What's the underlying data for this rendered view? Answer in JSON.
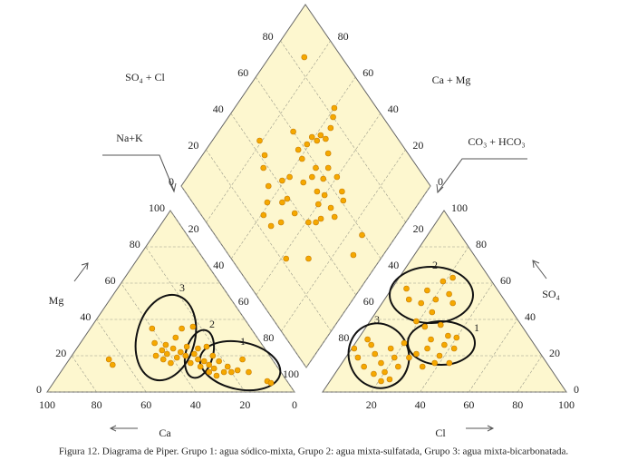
{
  "chart_data": {
    "type": "piper",
    "caption": "Figura 12. Diagrama de Piper. Grupo 1: agua sódico-mixta, Grupo 2: agua mixta-sulfatada, Grupo 3: agua mixta-bicarbonatada.",
    "color": "#f5a800",
    "background": "#fdf7cf",
    "groups": [
      "1",
      "2",
      "3"
    ],
    "cation_triangle": {
      "x_label": "Ca",
      "y_label": "Mg",
      "xticks": [
        100,
        80,
        60,
        40,
        20,
        0
      ],
      "yticks": [
        0,
        20,
        40,
        60,
        80,
        100
      ],
      "points": {
        "Ca": [
          66,
          66,
          40,
          43,
          46,
          42,
          44,
          39,
          41,
          42,
          37,
          33,
          38,
          35,
          28,
          34,
          31,
          34,
          23,
          30,
          30,
          27,
          31,
          28,
          23,
          27,
          23,
          26,
          22,
          23,
          20,
          20,
          17,
          12,
          13,
          8,
          7,
          27,
          29
        ],
        "Mg": [
          18,
          15,
          35,
          27,
          20,
          23,
          18,
          26,
          21,
          16,
          24,
          30,
          19,
          22,
          35,
          20,
          25,
          16,
          36,
          21,
          18,
          24,
          14,
          17,
          25,
          15,
          20,
          13,
          17,
          11,
          14,
          11,
          12,
          18,
          11,
          6,
          5,
          9,
          11
        ]
      }
    },
    "anion_triangle": {
      "x_label": "Cl",
      "y_label": "SO₄",
      "xticks": [
        20,
        40,
        60,
        80,
        100
      ],
      "yticks": [
        0,
        20,
        40,
        60,
        80,
        100
      ],
      "points": {
        "Cl": [
          6,
          10,
          16,
          15,
          21,
          19,
          25,
          29,
          22,
          23,
          19,
          24,
          30,
          36,
          40,
          30,
          37,
          42,
          38,
          31,
          28,
          38,
          44,
          34,
          1,
          5,
          10,
          7,
          11,
          16,
          20,
          16,
          20,
          24,
          16,
          21,
          24,
          20,
          26,
          4
        ],
        "SO4": [
          57,
          51,
          49,
          56,
          51,
          61,
          54,
          49,
          63,
          44,
          39,
          36,
          37,
          31,
          30,
          29,
          26,
          24,
          20,
          24,
          21,
          16,
          16,
          14,
          24,
          19,
          14,
          26,
          21,
          16,
          11,
          24,
          19,
          14,
          10,
          6,
          7,
          27,
          19,
          29
        ]
      }
    },
    "diamond": {
      "upper_left_label": "SO₄ + Cl",
      "upper_right_label": "Ca + Mg",
      "lower_left_label": "Na+K",
      "lower_right_label": "CO₃ + HCO₃",
      "upper_left_ticks": [
        0,
        20,
        40,
        60,
        80
      ],
      "upper_right_ticks": [
        80,
        60,
        40,
        20,
        0
      ],
      "lower_left_ticks": [
        20,
        40,
        60,
        80,
        100
      ],
      "lower_right_ticks": [
        20,
        40,
        60,
        80
      ],
      "points": {
        "so4_cl": [
          85,
          44,
          38,
          42,
          35,
          30,
          25,
          25,
          30,
          36,
          39,
          60,
          57,
          56,
          62,
          66,
          67,
          70,
          71,
          76,
          80,
          83,
          68,
          59,
          55,
          53,
          50,
          55,
          54,
          53,
          47,
          41,
          38,
          46,
          42,
          50,
          44,
          31,
          22,
          59,
          50,
          61,
          65,
          63,
          64,
          59
        ],
        "ca_mg": [
          86,
          81,
          72,
          75,
          65,
          61,
          59,
          53,
          50,
          55,
          54,
          70,
          63,
          59,
          61,
          61,
          58,
          58,
          55,
          56,
          58,
          60,
          50,
          51,
          50,
          44,
          40,
          40,
          34,
          30,
          35,
          39,
          47,
          59,
          61,
          52,
          36,
          29,
          38,
          14,
          12,
          31,
          40,
          34,
          46,
          45
        ]
      }
    }
  }
}
